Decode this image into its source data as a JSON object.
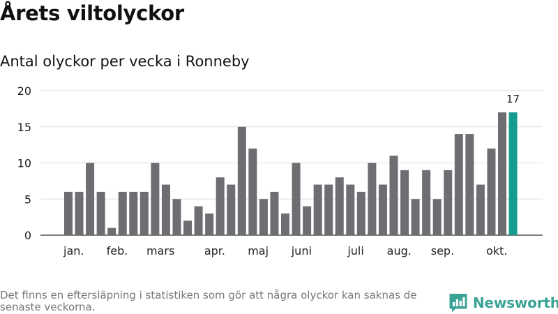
{
  "header": {
    "title": "Årets viltolyckor",
    "subtitle": "Antal olyckor per vecka i Ronneby"
  },
  "chart_data": {
    "type": "bar",
    "title": "Årets viltolyckor",
    "subtitle": "Antal olyckor per vecka i Ronneby",
    "xlabel": "",
    "ylabel": "",
    "ylim": [
      0,
      20
    ],
    "yticks": [
      0,
      5,
      10,
      15,
      20
    ],
    "grid": true,
    "values": [
      6,
      6,
      10,
      6,
      1,
      6,
      6,
      6,
      10,
      7,
      5,
      2,
      4,
      3,
      8,
      7,
      15,
      12,
      5,
      6,
      3,
      10,
      4,
      7,
      7,
      8,
      7,
      6,
      10,
      7,
      11,
      9,
      5,
      9,
      5,
      9,
      14,
      14,
      7,
      12,
      17,
      17
    ],
    "highlight_index": 41,
    "month_labels": [
      {
        "label": "jan.",
        "bar": 0.5
      },
      {
        "label": "feb.",
        "bar": 4.5
      },
      {
        "label": "mars",
        "bar": 8.5
      },
      {
        "label": "apr.",
        "bar": 13.5
      },
      {
        "label": "maj",
        "bar": 17.5
      },
      {
        "label": "juni",
        "bar": 21.5
      },
      {
        "label": "juli",
        "bar": 26.5
      },
      {
        "label": "aug.",
        "bar": 30.5
      },
      {
        "label": "sep.",
        "bar": 34.5
      },
      {
        "label": "okt.",
        "bar": 39.5
      }
    ],
    "annotation": "17",
    "colors": {
      "bar": "#6e6d72",
      "highlight": "#169c8e",
      "grid": "#dddddd",
      "axis": "#333333"
    }
  },
  "footer": {
    "note": "Det finns en eftersläpning i statistiken som gör att några olyckor kan saknas de senaste veckorna.",
    "brand": "Newsworthy",
    "brand_color": "#3aa396",
    "brand_icon": "bar-chart-logo-icon"
  }
}
